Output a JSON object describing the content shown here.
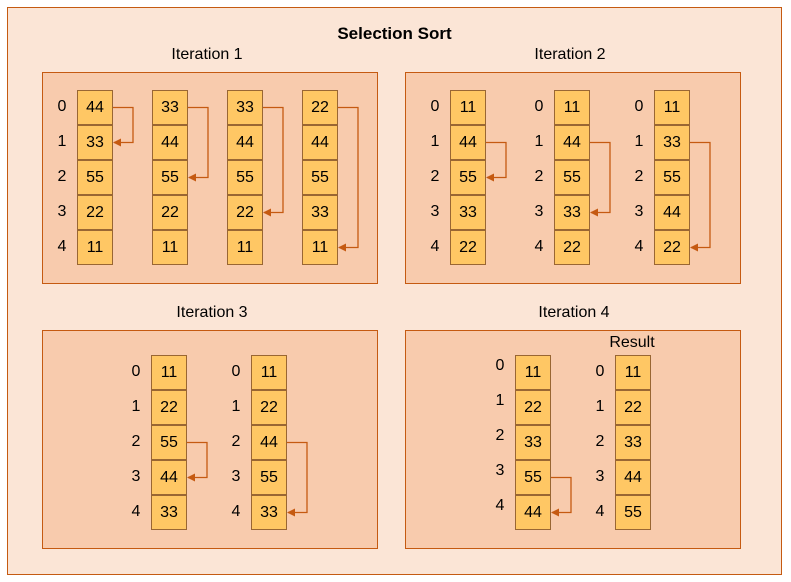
{
  "title": "Selection Sort",
  "colors": {
    "frame_fill": "#fbe5d6",
    "panel_fill": "#f8cbad",
    "cell_fill": "#ffc764",
    "arrow": "#c55a11"
  },
  "panels": [
    {
      "title": "Iteration 1",
      "steps": [
        {
          "indices": [
            "0",
            "1",
            "2",
            "3",
            "4"
          ],
          "values": [
            "44",
            "33",
            "55",
            "22",
            "11"
          ],
          "swap": [
            0,
            1
          ]
        },
        {
          "indices": [],
          "values": [
            "33",
            "44",
            "55",
            "22",
            "11"
          ],
          "swap": [
            0,
            2
          ]
        },
        {
          "indices": [],
          "values": [
            "33",
            "44",
            "55",
            "22",
            "11"
          ],
          "swap": [
            0,
            3
          ]
        },
        {
          "indices": [],
          "values": [
            "22",
            "44",
            "55",
            "33",
            "11"
          ],
          "swap": [
            0,
            4
          ]
        }
      ]
    },
    {
      "title": "Iteration 2",
      "steps": [
        {
          "indices": [
            "0",
            "1",
            "2",
            "3",
            "4"
          ],
          "values": [
            "11",
            "44",
            "55",
            "33",
            "22"
          ],
          "swap": [
            1,
            2
          ]
        },
        {
          "indices": [
            "0",
            "1",
            "2",
            "3",
            "4"
          ],
          "values": [
            "11",
            "44",
            "55",
            "33",
            "22"
          ],
          "swap": [
            1,
            3
          ]
        },
        {
          "indices": [
            "0",
            "1",
            "2",
            "3",
            "4"
          ],
          "values": [
            "11",
            "33",
            "55",
            "44",
            "22"
          ],
          "swap": [
            1,
            4
          ]
        }
      ]
    },
    {
      "title": "Iteration 3",
      "steps": [
        {
          "indices": [
            "0",
            "1",
            "2",
            "3",
            "4"
          ],
          "values": [
            "11",
            "22",
            "55",
            "44",
            "33"
          ],
          "swap": [
            2,
            3
          ]
        },
        {
          "indices": [
            "0",
            "1",
            "2",
            "3",
            "4"
          ],
          "values": [
            "11",
            "22",
            "44",
            "55",
            "33"
          ],
          "swap": [
            2,
            4
          ]
        }
      ]
    },
    {
      "title": "Iteration 4",
      "result_label": "Result",
      "steps": [
        {
          "indices": [
            "0",
            "1",
            "2",
            "3",
            "4"
          ],
          "values": [
            "11",
            "22",
            "33",
            "55",
            "44"
          ],
          "swap": [
            3,
            4
          ]
        },
        {
          "indices": [
            "0",
            "1",
            "2",
            "3",
            "4"
          ],
          "values": [
            "11",
            "22",
            "33",
            "44",
            "55"
          ],
          "swap": null
        }
      ]
    }
  ]
}
